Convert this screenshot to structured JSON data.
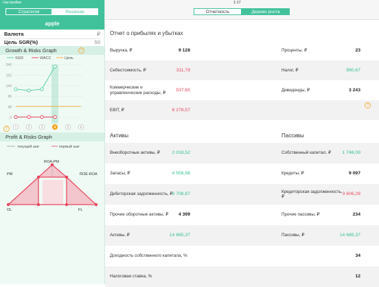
{
  "status_bar": {
    "back": "Настройки",
    "time": "1:17"
  },
  "sidebar": {
    "tabs": [
      "Стратегия",
      "Решения"
    ],
    "company": "apple",
    "currency_label": "Валюта",
    "currency": "₽",
    "target_label": "Цель SGR(%)",
    "target": "50",
    "growth_graph": {
      "title": "Growth & Risks Graph",
      "x": [
        1,
        2,
        3,
        4,
        5,
        6
      ],
      "selected_step": 4,
      "ylim": [
        0,
        240
      ],
      "yticks": [
        0,
        48,
        96,
        144,
        192,
        240
      ],
      "series": [
        {
          "name": "SGR",
          "color": "#5ccfa6",
          "values": [
            128,
            122,
            128,
            231,
            null,
            null
          ],
          "markers": true
        },
        {
          "name": "WACC",
          "color": "#e8475f",
          "values": [
            2,
            2,
            2,
            2,
            null,
            null
          ],
          "markers": true
        },
        {
          "name": "Цель",
          "color": "#f5b041",
          "values": [
            50,
            50,
            50,
            50,
            50,
            50
          ],
          "markers": false
        }
      ]
    },
    "profit_graph": {
      "title": "Profit & Risks Graph",
      "legend": [
        "текущий шаг",
        "первый шаг"
      ],
      "labels": [
        "ROA-PM",
        "PM",
        "ROE-ROA",
        "OL",
        "FL"
      ]
    }
  },
  "tabs": [
    "Отчетность",
    "Дерево роста"
  ],
  "income_statement": {
    "title": "Отчет о прибылях и убытках",
    "left": [
      {
        "label": "Выручка, ₽",
        "value": "9 128",
        "tone": "black"
      },
      {
        "label": "Себестоимость, ₽",
        "value": "311,78",
        "tone": "red"
      },
      {
        "label": "Коммерческие и управленческие расходы, ₽",
        "value": "537,65",
        "tone": "red"
      },
      {
        "label": "EBIT, ₽",
        "value": "8 278,57",
        "tone": "red"
      }
    ],
    "right": [
      {
        "label": "Проценты, ₽",
        "value": "23",
        "tone": "black"
      },
      {
        "label": "Налог, ₽",
        "value": "990,67",
        "tone": "green"
      },
      {
        "label": "Дивиденды, ₽",
        "value": "3 243",
        "tone": "black"
      }
    ]
  },
  "balance": {
    "assets_title": "Активы",
    "liabilities_title": "Пассивы",
    "assets": [
      {
        "label": "Внеоборотные активы, ₽",
        "value": "2 018,52",
        "tone": "green"
      },
      {
        "label": "Запасы, ₽",
        "value": "4 558,98",
        "tone": "green"
      },
      {
        "label": "Дебиторская задолженность, ₽",
        "value": "3 708,87",
        "tone": "green"
      },
      {
        "label": "Прочие оборотные активы, ₽",
        "value": "4 399",
        "tone": "black"
      },
      {
        "label": "Активы, ₽",
        "value": "14 685,37",
        "tone": "green"
      }
    ],
    "liabilities": [
      {
        "label": "Собственный капитал, ₽",
        "value": "1 748,09",
        "tone": "green"
      },
      {
        "label": "Кредиты, ₽",
        "value": "9 097",
        "tone": "black"
      },
      {
        "label": "Кредиторская задолженность, ₽",
        "value": "3 606,28",
        "tone": "red"
      },
      {
        "label": "Прочие пассивы, ₽",
        "value": "234",
        "tone": "black"
      },
      {
        "label": "Пассивы, ₽",
        "value": "14 685,37",
        "tone": "green"
      }
    ],
    "ratios": [
      {
        "label": "Доходность собственного капитала, %",
        "value": "34",
        "tone": "black"
      },
      {
        "label": "Налоговая ставка, %",
        "value": "12",
        "tone": "black"
      }
    ]
  }
}
